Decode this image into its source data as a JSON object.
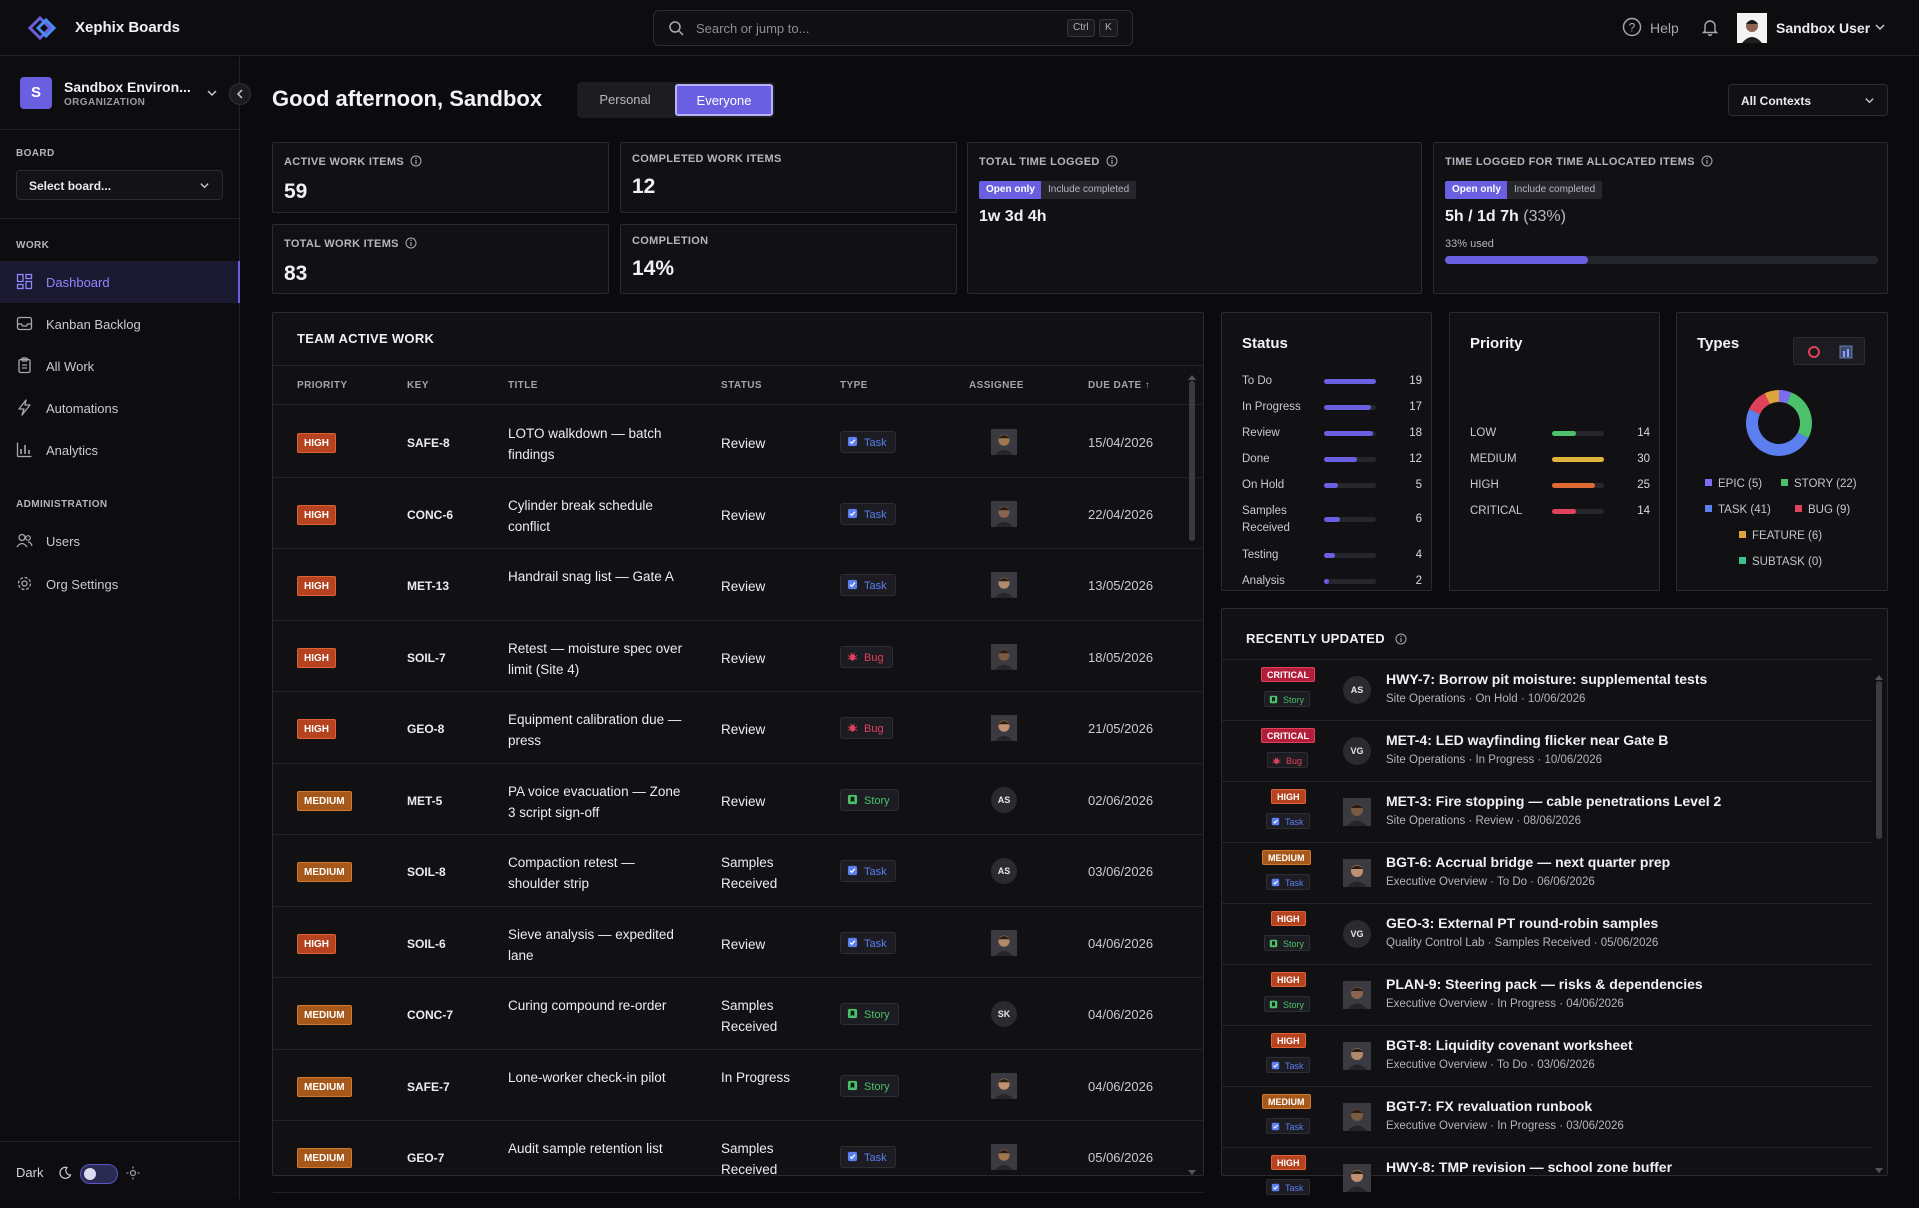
{
  "app": {
    "name": "Xephix Boards"
  },
  "search": {
    "placeholder": "Search or jump to...",
    "shortcut_mod": "Ctrl",
    "shortcut_key": "K"
  },
  "header": {
    "help_label": "Help",
    "user_name": "Sandbox User"
  },
  "sidebar": {
    "org_initial": "S",
    "org_name": "Sandbox Environ...",
    "org_type": "ORGANIZATION",
    "board_section": "BOARD",
    "board_select": "Select board...",
    "work_section": "WORK",
    "work_items": [
      {
        "label": "Dashboard",
        "icon": "dashboard-icon",
        "active": true
      },
      {
        "label": "Kanban Backlog",
        "icon": "inbox-icon"
      },
      {
        "label": "All Work",
        "icon": "clipboard-icon"
      },
      {
        "label": "Automations",
        "icon": "lightning-icon"
      },
      {
        "label": "Analytics",
        "icon": "bar-chart-icon"
      }
    ],
    "admin_section": "ADMINISTRATION",
    "admin_items": [
      {
        "label": "Users",
        "icon": "users-icon"
      },
      {
        "label": "Org Settings",
        "icon": "gear-icon"
      }
    ],
    "theme_label": "Dark"
  },
  "main": {
    "greeting": "Good afternoon, Sandbox",
    "scope_tabs": [
      "Personal",
      "Everyone"
    ],
    "scope_selected": "Everyone",
    "context_select": "All Contexts"
  },
  "stats": {
    "active_label": "ACTIVE WORK ITEMS",
    "active_value": "59",
    "total_label": "TOTAL WORK ITEMS",
    "total_value": "83",
    "completed_label": "COMPLETED WORK ITEMS",
    "completed_value": "12",
    "completion_label": "COMPLETION",
    "completion_value": "14%",
    "time_label": "TOTAL TIME LOGGED",
    "time_value": "1w 3d 4h",
    "alloc_label": "TIME LOGGED FOR TIME ALLOCATED ITEMS",
    "alloc_value": "5h / 1d 7h",
    "alloc_pct": "(33%)",
    "alloc_used": "33% used",
    "alloc_fraction": 0.33,
    "open_only": "Open only",
    "include_completed": "Include completed"
  },
  "team_table": {
    "title": "TEAM ACTIVE WORK",
    "headers": [
      "PRIORITY",
      "KEY",
      "TITLE",
      "STATUS",
      "TYPE",
      "ASSIGNEE",
      "DUE DATE ↑"
    ],
    "rows": [
      {
        "priority": "HIGH",
        "key": "SAFE-8",
        "title": "LOTO walkdown — batch findings",
        "status": "Review",
        "type": "Task",
        "assignee": "",
        "due": "15/04/2026"
      },
      {
        "priority": "HIGH",
        "key": "CONC-6",
        "title": "Cylinder break schedule conflict",
        "status": "Review",
        "type": "Task",
        "assignee": "",
        "due": "22/04/2026"
      },
      {
        "priority": "HIGH",
        "key": "MET-13",
        "title": "Handrail snag list — Gate A",
        "status": "Review",
        "type": "Task",
        "assignee": "",
        "due": "13/05/2026"
      },
      {
        "priority": "HIGH",
        "key": "SOIL-7",
        "title": "Retest — moisture spec over limit (Site 4)",
        "status": "Review",
        "type": "Bug",
        "assignee": "",
        "due": "18/05/2026"
      },
      {
        "priority": "HIGH",
        "key": "GEO-8",
        "title": "Equipment calibration due — press",
        "status": "Review",
        "type": "Bug",
        "assignee": "",
        "due": "21/05/2026"
      },
      {
        "priority": "MEDIUM",
        "key": "MET-5",
        "title": "PA voice evacuation — Zone 3 script sign-off",
        "status": "Review",
        "type": "Story",
        "assignee": "AS",
        "due": "02/06/2026"
      },
      {
        "priority": "MEDIUM",
        "key": "SOIL-8",
        "title": "Compaction retest — shoulder strip",
        "status": "Samples Received",
        "type": "Task",
        "assignee": "AS",
        "due": "03/06/2026"
      },
      {
        "priority": "HIGH",
        "key": "SOIL-6",
        "title": "Sieve analysis — expedited lane",
        "status": "Review",
        "type": "Task",
        "assignee": "",
        "due": "04/06/2026"
      },
      {
        "priority": "MEDIUM",
        "key": "CONC-7",
        "title": "Curing compound re-order",
        "status": "Samples Received",
        "type": "Story",
        "assignee": "SK",
        "due": "04/06/2026"
      },
      {
        "priority": "MEDIUM",
        "key": "SAFE-7",
        "title": "Lone-worker check-in pilot",
        "status": "In Progress",
        "type": "Story",
        "assignee": "",
        "due": "04/06/2026"
      },
      {
        "priority": "MEDIUM",
        "key": "GEO-7",
        "title": "Audit sample retention list",
        "status": "Samples Received",
        "type": "Task",
        "assignee": "",
        "due": "05/06/2026"
      }
    ]
  },
  "status_panel": {
    "title": "Status",
    "items": [
      {
        "label": "To Do",
        "count": 19
      },
      {
        "label": "In Progress",
        "count": 17
      },
      {
        "label": "Review",
        "count": 18
      },
      {
        "label": "Done",
        "count": 12
      },
      {
        "label": "On Hold",
        "count": 5
      },
      {
        "label": "Samples Received",
        "count": 6
      },
      {
        "label": "Testing",
        "count": 4
      },
      {
        "label": "Analysis",
        "count": 2
      }
    ],
    "bar_color": "#6a5fe0"
  },
  "priority_panel": {
    "title": "Priority",
    "items": [
      {
        "label": "LOW",
        "count": 14,
        "color": "#4cc06a"
      },
      {
        "label": "MEDIUM",
        "count": 30,
        "color": "#e0b43a"
      },
      {
        "label": "HIGH",
        "count": 25,
        "color": "#e06a34"
      },
      {
        "label": "CRITICAL",
        "count": 14,
        "color": "#e0425c"
      }
    ]
  },
  "types_panel": {
    "title": "Types",
    "items": [
      {
        "label": "EPIC (5)",
        "value": 5,
        "color": "#7b6cf0"
      },
      {
        "label": "STORY (22)",
        "value": 22,
        "color": "#4cc06a"
      },
      {
        "label": "TASK (41)",
        "value": 41,
        "color": "#5b7ff0"
      },
      {
        "label": "BUG (9)",
        "value": 9,
        "color": "#e0425c"
      },
      {
        "label": "FEATURE (6)",
        "value": 6,
        "color": "#e0a23a"
      },
      {
        "label": "SUBTASK (0)",
        "value": 0,
        "color": "#3fbf8a"
      }
    ]
  },
  "recent": {
    "title": "RECENTLY UPDATED",
    "items": [
      {
        "priority": "CRITICAL",
        "type": "Story",
        "avatar": "AS",
        "key": "HWY-7",
        "title": "Borrow pit moisture: supplemental tests",
        "meta": "Site Operations · On Hold · 10/06/2026"
      },
      {
        "priority": "CRITICAL",
        "type": "Bug",
        "avatar": "VG",
        "key": "MET-4",
        "title": "LED wayfinding flicker near Gate B",
        "meta": "Site Operations · In Progress · 10/06/2026"
      },
      {
        "priority": "HIGH",
        "type": "Task",
        "avatar": "",
        "key": "MET-3",
        "title": "Fire stopping — cable penetrations Level 2",
        "meta": "Site Operations · Review · 08/06/2026"
      },
      {
        "priority": "MEDIUM",
        "type": "Task",
        "avatar": "",
        "key": "BGT-6",
        "title": "Accrual bridge — next quarter prep",
        "meta": "Executive Overview · To Do · 06/06/2026"
      },
      {
        "priority": "HIGH",
        "type": "Story",
        "avatar": "VG",
        "key": "GEO-3",
        "title": "External PT round-robin samples",
        "meta": "Quality Control Lab · Samples Received · 05/06/2026"
      },
      {
        "priority": "HIGH",
        "type": "Story",
        "avatar": "",
        "key": "PLAN-9",
        "title": "Steering pack — risks & dependencies",
        "meta": "Executive Overview · In Progress · 04/06/2026"
      },
      {
        "priority": "HIGH",
        "type": "Task",
        "avatar": "",
        "key": "BGT-8",
        "title": "Liquidity covenant worksheet",
        "meta": "Executive Overview · To Do · 03/06/2026"
      },
      {
        "priority": "MEDIUM",
        "type": "Task",
        "avatar": "",
        "key": "BGT-7",
        "title": "FX revaluation runbook",
        "meta": "Executive Overview · In Progress · 03/06/2026"
      },
      {
        "priority": "HIGH",
        "type": "Task",
        "avatar": "",
        "key": "HWY-8",
        "title": "TMP revision — school zone buffer",
        "meta": ""
      }
    ]
  },
  "colors": {
    "accent": "#6a5fe0",
    "task": "#5b7ff0",
    "story": "#4cc06a",
    "bug": "#e0425c"
  }
}
